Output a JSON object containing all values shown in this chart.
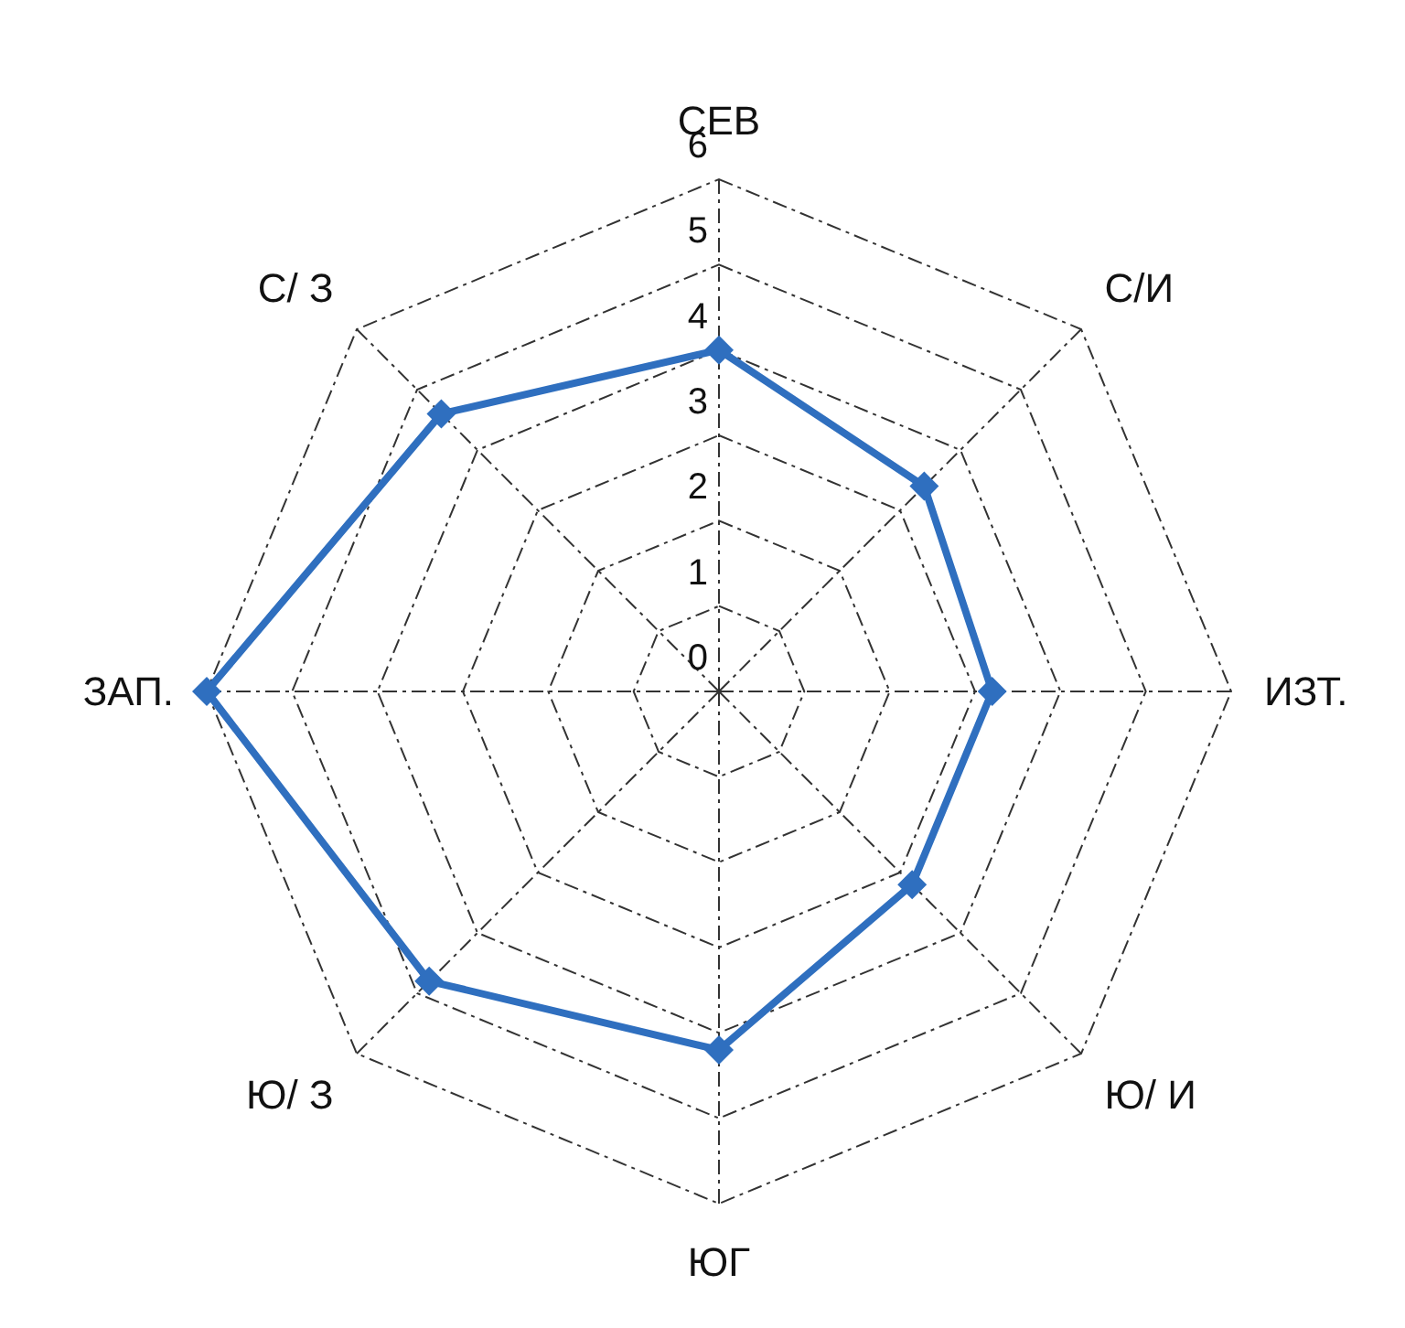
{
  "chart_data": {
    "type": "radar",
    "categories": [
      "СЕВ",
      "С/И",
      "ИЗТ.",
      "Ю/ И",
      "ЮГ",
      "Ю/ З",
      "ЗАП.",
      "С/ З"
    ],
    "series": [
      {
        "color": "#2f6fbf",
        "values": [
          4,
          3.4,
          3.2,
          3.2,
          4.2,
          4.8,
          6,
          4.6
        ]
      }
    ],
    "ylim": [
      0,
      6
    ],
    "yticks": [
      0,
      1,
      2,
      3,
      4,
      5,
      6
    ],
    "grid": true,
    "marker": "diamond"
  }
}
